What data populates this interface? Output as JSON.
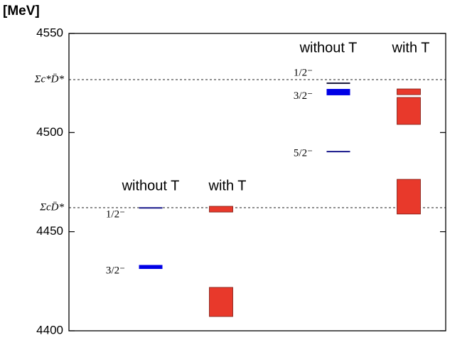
{
  "chart_data": {
    "type": "level",
    "y_label": "[MeV]",
    "ylim": [
      4400,
      4550
    ],
    "yticks": [
      4400,
      4450,
      4500,
      4550
    ],
    "thresholds": [
      {
        "label": "Σc*D̄*",
        "value": 4526.7
      },
      {
        "label": "ΣcD̄*",
        "value": 4462.1
      }
    ],
    "groups": [
      {
        "columns": [
          {
            "label": "without T",
            "levels": [
              {
                "label": "1/2⁻",
                "range": [
                  4461.7,
                  4462.3
                ],
                "color": "#1a1a8c"
              },
              {
                "label": "3/2⁻",
                "range": [
                  4431.2,
                  4433.2
                ],
                "color": "#0000e6"
              }
            ]
          },
          {
            "label": "with T",
            "levels": [
              {
                "range": [
                  4459.9,
                  4462.8
                ],
                "color": "#e8392b"
              },
              {
                "range": [
                  4407.2,
                  4421.9
                ],
                "color": "#e8392b"
              }
            ]
          }
        ]
      },
      {
        "columns": [
          {
            "label": "without T",
            "levels": [
              {
                "label": "1/2⁻",
                "range": [
                  4524.6,
                  4525.2
                ],
                "color": "#1a1a3c"
              },
              {
                "label": "3/2⁻",
                "range": [
                  4518.8,
                  4522.0
                ],
                "color": "#0000e6"
              },
              {
                "label": "5/2⁻",
                "range": [
                  4490.1,
                  4490.7
                ],
                "color": "#1a1a8c"
              }
            ]
          },
          {
            "label": "with T",
            "levels": [
              {
                "range": [
                  4519.1,
                  4522.0
                ],
                "color": "#e8392b"
              },
              {
                "range": [
                  4504.1,
                  4517.7
                ],
                "color": "#e8392b"
              },
              {
                "range": [
                  4458.9,
                  4476.4
                ],
                "color": "#e8392b"
              }
            ]
          }
        ]
      }
    ]
  }
}
